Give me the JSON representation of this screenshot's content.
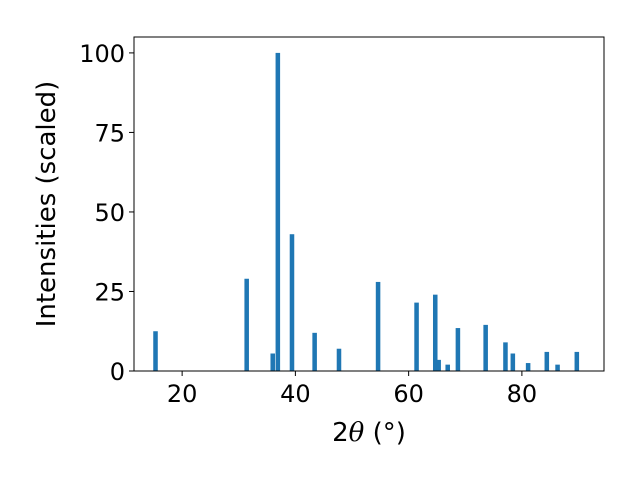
{
  "chart_data": {
    "type": "bar",
    "xlabel_prefix": "2",
    "xlabel_symbol": "θ",
    "xlabel_suffix": " (°)",
    "ylabel": "Intensities (scaled)",
    "xlim": [
      11.5,
      94.5
    ],
    "ylim": [
      0,
      105
    ],
    "xticks": [
      20,
      40,
      60,
      80
    ],
    "yticks": [
      0,
      25,
      50,
      75,
      100
    ],
    "bar_color": "#1f77b4",
    "bar_width": 0.8,
    "grid": false,
    "x": [
      15.3,
      31.4,
      36.0,
      36.9,
      39.4,
      43.4,
      47.7,
      54.6,
      61.4,
      64.7,
      65.3,
      66.9,
      68.7,
      73.6,
      77.1,
      78.4,
      81.1,
      84.4,
      86.3,
      89.7
    ],
    "values": [
      12.5,
      29.0,
      5.5,
      100.0,
      43.0,
      12.0,
      7.0,
      28.0,
      21.5,
      24.0,
      3.5,
      2.0,
      13.5,
      14.5,
      9.0,
      5.5,
      2.5,
      6.0,
      2.0,
      6.0
    ]
  }
}
